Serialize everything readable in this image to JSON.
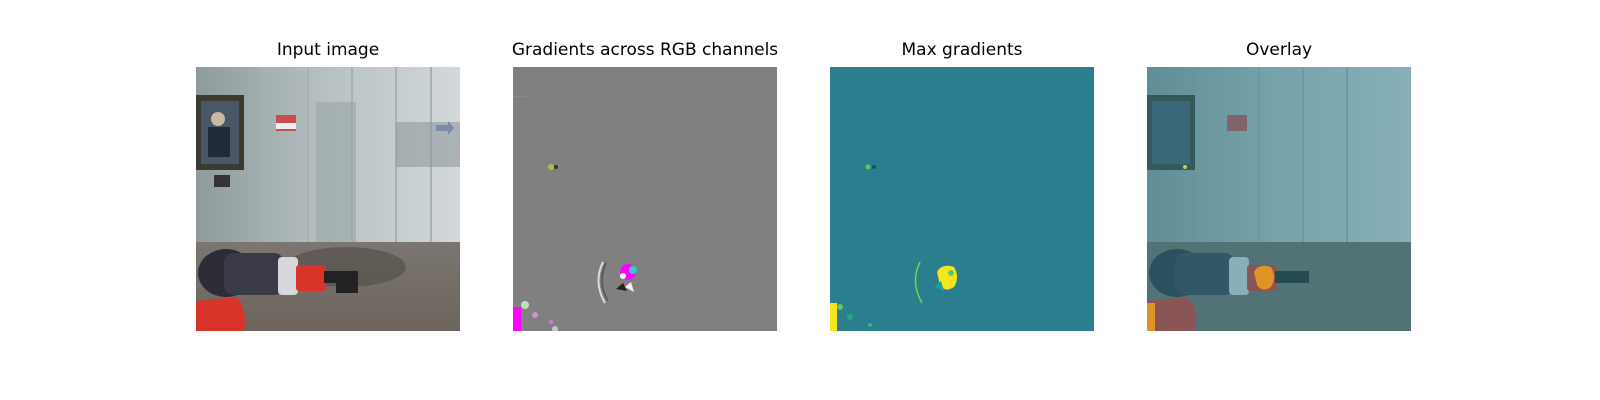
{
  "figure": {
    "panels": [
      {
        "id": "input",
        "title": "Input image",
        "image": "robot-arm-camera-view"
      },
      {
        "id": "rgb-gradients",
        "title": "Gradients across RGB channels",
        "image": "gradient-map-rgb"
      },
      {
        "id": "max-gradients",
        "title": "Max gradients",
        "image": "gradient-map-max"
      },
      {
        "id": "overlay",
        "title": "Overlay",
        "image": "gradient-overlay"
      }
    ]
  },
  "colors": {
    "background": "#ffffff",
    "gradient_gray": "#808080",
    "max_gradient_teal": "#2a7e8e",
    "max_gradient_yellow": "#f4e61e",
    "overlay_tint": "#3f7f8c",
    "robot_red": "#d8342a",
    "robot_dark": "#2d2d38",
    "magenta": "#ff00ff"
  }
}
